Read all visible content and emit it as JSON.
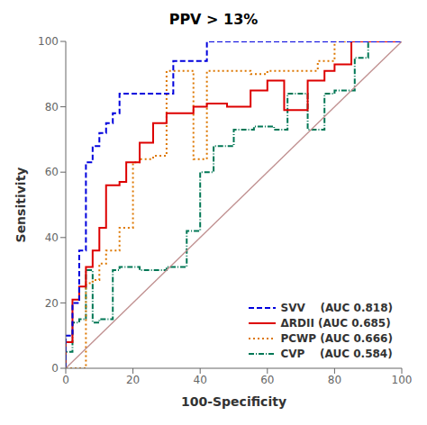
{
  "chart_data": {
    "type": "line",
    "title": "PPV > 13%",
    "x_label": "100-Specificity",
    "y_label": "Sensitivity",
    "xlim": [
      0,
      100
    ],
    "ylim": [
      0,
      100
    ],
    "xticks": [
      0,
      20,
      40,
      60,
      80,
      100
    ],
    "yticks": [
      0,
      20,
      40,
      60,
      80,
      100
    ],
    "grid": false,
    "legend": "lower right",
    "series": [
      {
        "color": "#c09090",
        "line_style": "solid",
        "x": [
          0,
          100
        ],
        "values": [
          0,
          100
        ]
      },
      {
        "name": "SVV    (AUC 0.818)",
        "color": "#0000dd",
        "line_style": "dashed",
        "x": [
          0,
          0,
          2,
          2,
          4,
          4,
          6,
          6,
          8,
          8,
          10,
          10,
          12,
          12,
          14,
          14,
          16,
          16,
          18,
          18,
          30,
          30,
          32,
          32,
          40,
          40,
          42,
          42,
          57,
          57,
          60,
          60,
          77,
          77,
          80,
          80,
          100
        ],
        "values": [
          0,
          10,
          10,
          20,
          20,
          36,
          36,
          63,
          63,
          68,
          68,
          72,
          72,
          75,
          75,
          78,
          78,
          84,
          84,
          84,
          84,
          84,
          84,
          94,
          94,
          94,
          94,
          100,
          100,
          100,
          100,
          100,
          100,
          100,
          100,
          100,
          100
        ]
      },
      {
        "name": "ΔRDII (AUC 0.685)",
        "color": "#dd0000",
        "line_style": "solid",
        "x": [
          0,
          0,
          2,
          2,
          4,
          4,
          6,
          6,
          8,
          8,
          10,
          10,
          12,
          12,
          16,
          16,
          18,
          18,
          22,
          22,
          26,
          26,
          30,
          30,
          38,
          38,
          42,
          42,
          48,
          48,
          55,
          55,
          60,
          60,
          65,
          65,
          72,
          72,
          77,
          77,
          80,
          80,
          85,
          85,
          100
        ],
        "values": [
          0,
          8,
          8,
          21,
          21,
          25,
          25,
          31,
          31,
          36,
          36,
          43,
          43,
          56,
          56,
          57,
          57,
          63,
          63,
          69,
          69,
          75,
          75,
          78,
          78,
          80,
          80,
          81,
          81,
          80,
          80,
          85,
          85,
          88,
          88,
          79,
          79,
          88,
          88,
          91,
          91,
          93,
          93,
          100,
          100
        ]
      },
      {
        "name": "PCWP (AUC 0.666)",
        "color": "#dd7700",
        "line_style": "dotted",
        "x": [
          0,
          0,
          4,
          4,
          6,
          6,
          8,
          8,
          10,
          10,
          12,
          12,
          16,
          16,
          20,
          20,
          22,
          22,
          26,
          26,
          30,
          30,
          38,
          38,
          42,
          42,
          55,
          55,
          60,
          60,
          75,
          75,
          80,
          80,
          100
        ],
        "values": [
          0,
          0,
          0,
          0,
          0,
          26,
          26,
          27,
          27,
          32,
          32,
          36,
          36,
          43,
          43,
          63,
          63,
          64,
          64,
          65,
          65,
          91,
          91,
          64,
          64,
          91,
          91,
          90,
          90,
          91,
          91,
          94,
          94,
          100,
          100
        ]
      },
      {
        "name": "CVP    (AUC 0.584)",
        "color": "#007755",
        "line_style": "dashdot",
        "x": [
          0,
          0,
          2,
          2,
          4,
          4,
          6,
          6,
          8,
          8,
          10,
          10,
          14,
          14,
          16,
          16,
          22,
          22,
          30,
          30,
          36,
          36,
          40,
          40,
          44,
          44,
          50,
          50,
          56,
          56,
          62,
          62,
          66,
          66,
          72,
          72,
          77,
          77,
          80,
          80,
          86,
          86,
          90,
          90,
          100
        ],
        "values": [
          0,
          5,
          5,
          14,
          14,
          15,
          15,
          30,
          30,
          14,
          14,
          15,
          15,
          30,
          30,
          31,
          31,
          30,
          30,
          31,
          31,
          42,
          42,
          60,
          60,
          68,
          68,
          73,
          73,
          74,
          74,
          73,
          73,
          84,
          84,
          73,
          73,
          84,
          84,
          85,
          85,
          95,
          95,
          100,
          100
        ]
      }
    ]
  }
}
